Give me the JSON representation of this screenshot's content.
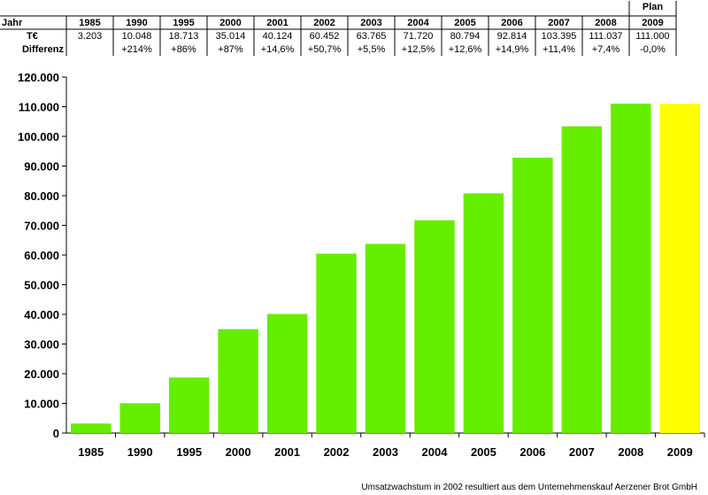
{
  "table": {
    "header_label": "Jahr",
    "value_label": "T€",
    "diff_label": "Differenz",
    "plan_label": "Plan",
    "years": [
      "1985",
      "1990",
      "1995",
      "2000",
      "2001",
      "2002",
      "2003",
      "2004",
      "2005",
      "2006",
      "2007",
      "2008",
      "2009"
    ],
    "values": [
      "3.203",
      "10.048",
      "18.713",
      "35.014",
      "40.124",
      "60.452",
      "63.765",
      "71.720",
      "80.794",
      "92.814",
      "103.395",
      "111.037",
      "111.000"
    ],
    "diffs": [
      "",
      "+214%",
      "+86%",
      "+87%",
      "+14,6%",
      "+50,7%",
      "+5,5%",
      "+12,5%",
      "+12,6%",
      "+14,9%",
      "+11,4%",
      "+7,4%",
      "-0,0%"
    ]
  },
  "chart_data": {
    "type": "bar",
    "categories": [
      "1985",
      "1990",
      "1995",
      "2000",
      "2001",
      "2002",
      "2003",
      "2004",
      "2005",
      "2006",
      "2007",
      "2008",
      "2009"
    ],
    "values": [
      3203,
      10048,
      18713,
      35014,
      40124,
      60452,
      63765,
      71720,
      80794,
      92814,
      103395,
      111037,
      111000
    ],
    "ylim": [
      0,
      120000
    ],
    "yticks": [
      "0",
      "10.000",
      "20.000",
      "30.000",
      "40.000",
      "50.000",
      "60.000",
      "70.000",
      "80.000",
      "90.000",
      "100.000",
      "110.000",
      "120.000"
    ],
    "grid": false,
    "colors": {
      "actual": "#66ee00",
      "plan": "#ffff00"
    },
    "plan_categories": [
      "2009"
    ]
  },
  "footnote": "Umsatzwachstum in 2002 resultiert aus dem Unternehmenskauf Aerzener Brot GmbH"
}
